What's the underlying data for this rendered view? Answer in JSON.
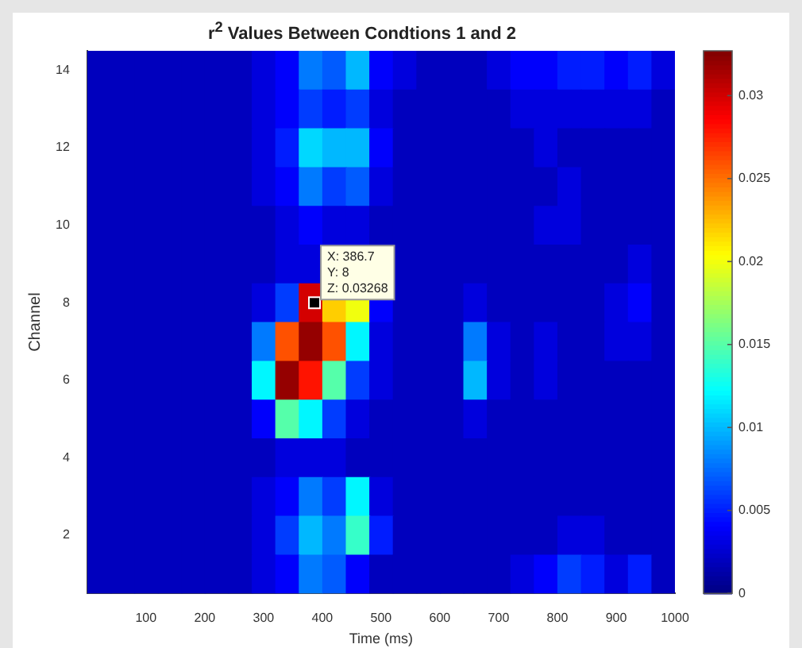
{
  "chart_data": {
    "type": "heatmap",
    "title": "r$^{2}$ Values Between Condtions 1 and 2",
    "xlabel": "Time (ms)",
    "ylabel": "Channel",
    "xlim": [
      0,
      1000
    ],
    "xticks": [
      100,
      200,
      300,
      400,
      500,
      600,
      700,
      800,
      900,
      1000
    ],
    "ylim": [
      0.5,
      14.5
    ],
    "yticks": [
      2,
      4,
      6,
      8,
      10,
      12,
      14
    ],
    "clim": [
      0,
      0.0327
    ],
    "cticks": [
      0,
      0.005,
      0.01,
      0.015,
      0.02,
      0.025,
      0.03
    ],
    "annotations": [
      {
        "text": "X: 386.7\nY: 8\nZ: 0.03268",
        "x": 386.7,
        "y": 8
      }
    ],
    "cells": [
      [
        0.002,
        0.002,
        0.002,
        0.002,
        0.002,
        0.002,
        0.002,
        0.003,
        0.004,
        0.008,
        0.007,
        0.01,
        0.004,
        0.003,
        0.002,
        0.002,
        0.002,
        0.003,
        0.004,
        0.004,
        0.005,
        0.005,
        0.004,
        0.005,
        0.003
      ],
      [
        0.002,
        0.002,
        0.002,
        0.002,
        0.002,
        0.002,
        0.002,
        0.003,
        0.004,
        0.006,
        0.005,
        0.006,
        0.003,
        0.002,
        0.002,
        0.002,
        0.002,
        0.002,
        0.003,
        0.003,
        0.003,
        0.003,
        0.003,
        0.003,
        0.002
      ],
      [
        0.002,
        0.002,
        0.002,
        0.002,
        0.002,
        0.002,
        0.002,
        0.003,
        0.005,
        0.011,
        0.01,
        0.01,
        0.004,
        0.002,
        0.002,
        0.002,
        0.002,
        0.002,
        0.002,
        0.003,
        0.002,
        0.002,
        0.002,
        0.002,
        0.002
      ],
      [
        0.002,
        0.002,
        0.002,
        0.002,
        0.002,
        0.002,
        0.002,
        0.003,
        0.004,
        0.008,
        0.006,
        0.007,
        0.003,
        0.002,
        0.002,
        0.002,
        0.002,
        0.002,
        0.002,
        0.002,
        0.003,
        0.002,
        0.002,
        0.002,
        0.002
      ],
      [
        0.002,
        0.002,
        0.002,
        0.002,
        0.002,
        0.002,
        0.002,
        0.002,
        0.003,
        0.004,
        0.003,
        0.003,
        0.002,
        0.002,
        0.002,
        0.002,
        0.002,
        0.002,
        0.002,
        0.003,
        0.003,
        0.002,
        0.002,
        0.002,
        0.002
      ],
      [
        0.002,
        0.002,
        0.002,
        0.002,
        0.002,
        0.002,
        0.002,
        0.002,
        0.003,
        0.003,
        null,
        null,
        null,
        0.002,
        0.002,
        0.002,
        0.002,
        0.002,
        0.002,
        0.002,
        0.002,
        0.002,
        0.002,
        0.003,
        0.002
      ],
      [
        0.002,
        0.002,
        0.002,
        0.002,
        0.002,
        0.002,
        0.002,
        0.003,
        0.006,
        0.03,
        0.022,
        0.02,
        0.004,
        0.002,
        0.002,
        0.002,
        0.003,
        0.002,
        0.002,
        0.002,
        0.002,
        0.002,
        0.003,
        0.004,
        0.002
      ],
      [
        0.002,
        0.002,
        0.002,
        0.002,
        0.002,
        0.002,
        0.002,
        0.008,
        0.026,
        0.032,
        0.026,
        0.012,
        0.003,
        0.002,
        0.002,
        0.002,
        0.008,
        0.003,
        0.002,
        0.003,
        0.002,
        0.002,
        0.003,
        0.003,
        0.002
      ],
      [
        0.002,
        0.002,
        0.002,
        0.002,
        0.002,
        0.002,
        0.002,
        0.012,
        0.032,
        0.028,
        0.015,
        0.006,
        0.003,
        0.002,
        0.002,
        0.002,
        0.01,
        0.003,
        0.002,
        0.003,
        0.002,
        0.002,
        0.002,
        0.002,
        0.002
      ],
      [
        0.002,
        0.002,
        0.002,
        0.002,
        0.002,
        0.002,
        0.002,
        0.004,
        0.015,
        0.012,
        0.006,
        0.003,
        0.002,
        0.002,
        0.002,
        0.002,
        0.003,
        0.002,
        0.002,
        0.002,
        0.002,
        0.002,
        0.002,
        0.002,
        0.002
      ],
      [
        0.002,
        0.002,
        0.002,
        0.002,
        0.002,
        0.002,
        0.002,
        0.002,
        0.003,
        0.003,
        0.003,
        0.002,
        0.002,
        0.002,
        0.002,
        0.002,
        0.002,
        0.002,
        0.002,
        0.002,
        0.002,
        0.002,
        0.002,
        0.002,
        0.002
      ],
      [
        0.002,
        0.002,
        0.002,
        0.002,
        0.002,
        0.002,
        0.002,
        0.003,
        0.004,
        0.008,
        0.006,
        0.012,
        0.003,
        0.002,
        0.002,
        0.002,
        0.002,
        0.002,
        0.002,
        0.002,
        0.002,
        0.002,
        0.002,
        0.002,
        0.002
      ],
      [
        0.002,
        0.002,
        0.002,
        0.002,
        0.002,
        0.002,
        0.002,
        0.003,
        0.006,
        0.01,
        0.008,
        0.014,
        0.005,
        0.002,
        0.002,
        0.002,
        0.002,
        0.002,
        0.002,
        0.002,
        0.003,
        0.003,
        0.002,
        0.002,
        0.002
      ],
      [
        0.002,
        0.002,
        0.002,
        0.002,
        0.002,
        0.002,
        0.002,
        0.003,
        0.004,
        0.008,
        0.007,
        0.004,
        0.002,
        0.002,
        0.002,
        0.002,
        0.002,
        0.002,
        0.003,
        0.004,
        0.006,
        0.005,
        0.003,
        0.005,
        0.002
      ]
    ]
  }
}
